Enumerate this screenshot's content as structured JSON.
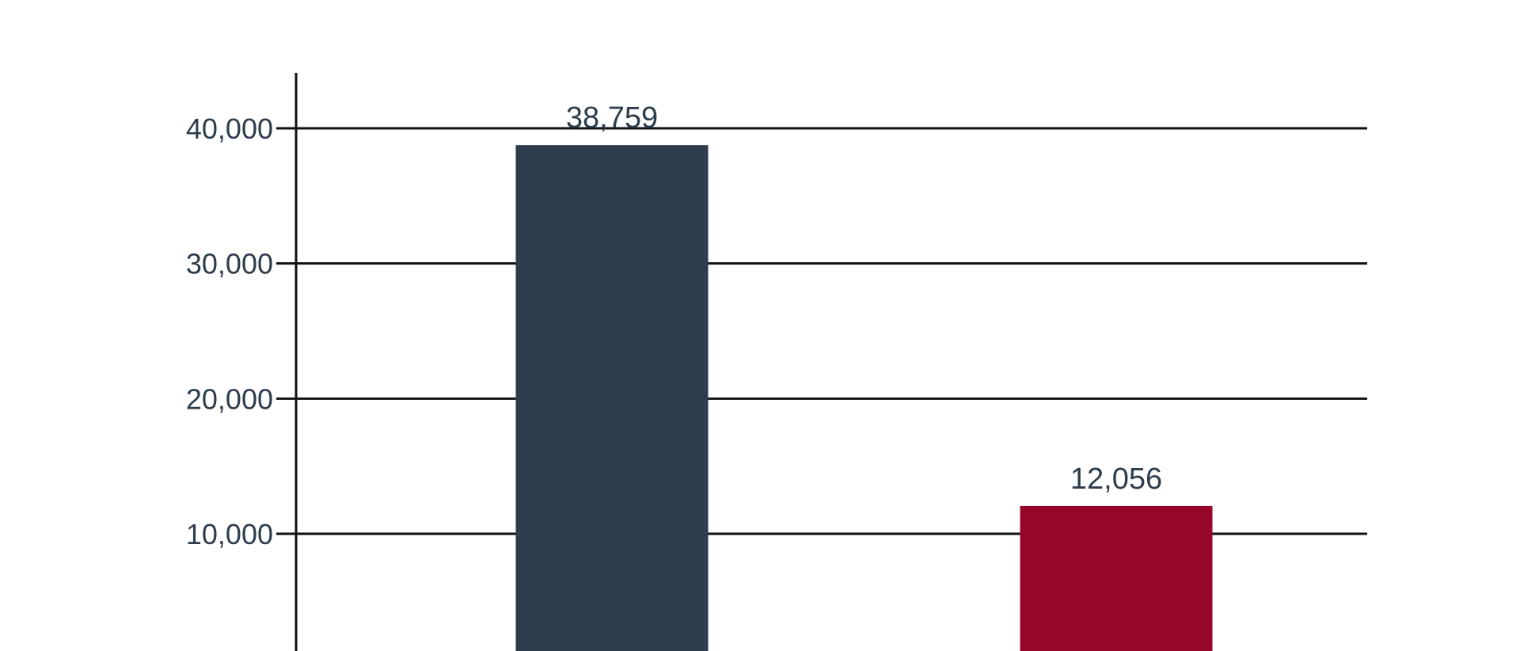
{
  "chart_data": {
    "type": "bar",
    "title": "",
    "xlabel": "",
    "ylabel": "",
    "categories": [
      "",
      ""
    ],
    "values": [
      38759,
      12056
    ],
    "value_labels": [
      "38,759",
      "12,056"
    ],
    "bar_colors": [
      "#2d3d4c",
      "#960628"
    ],
    "ylim": [
      0,
      44000
    ],
    "y_ticks": [
      10000,
      20000,
      30000,
      40000
    ],
    "y_tick_labels": [
      "10,000",
      "20,000",
      "30,000",
      "40,000"
    ],
    "grid": true,
    "legend": "none",
    "colors": {
      "axis": "#111111",
      "grid": "#111111",
      "text": "#2d3d4c"
    }
  }
}
